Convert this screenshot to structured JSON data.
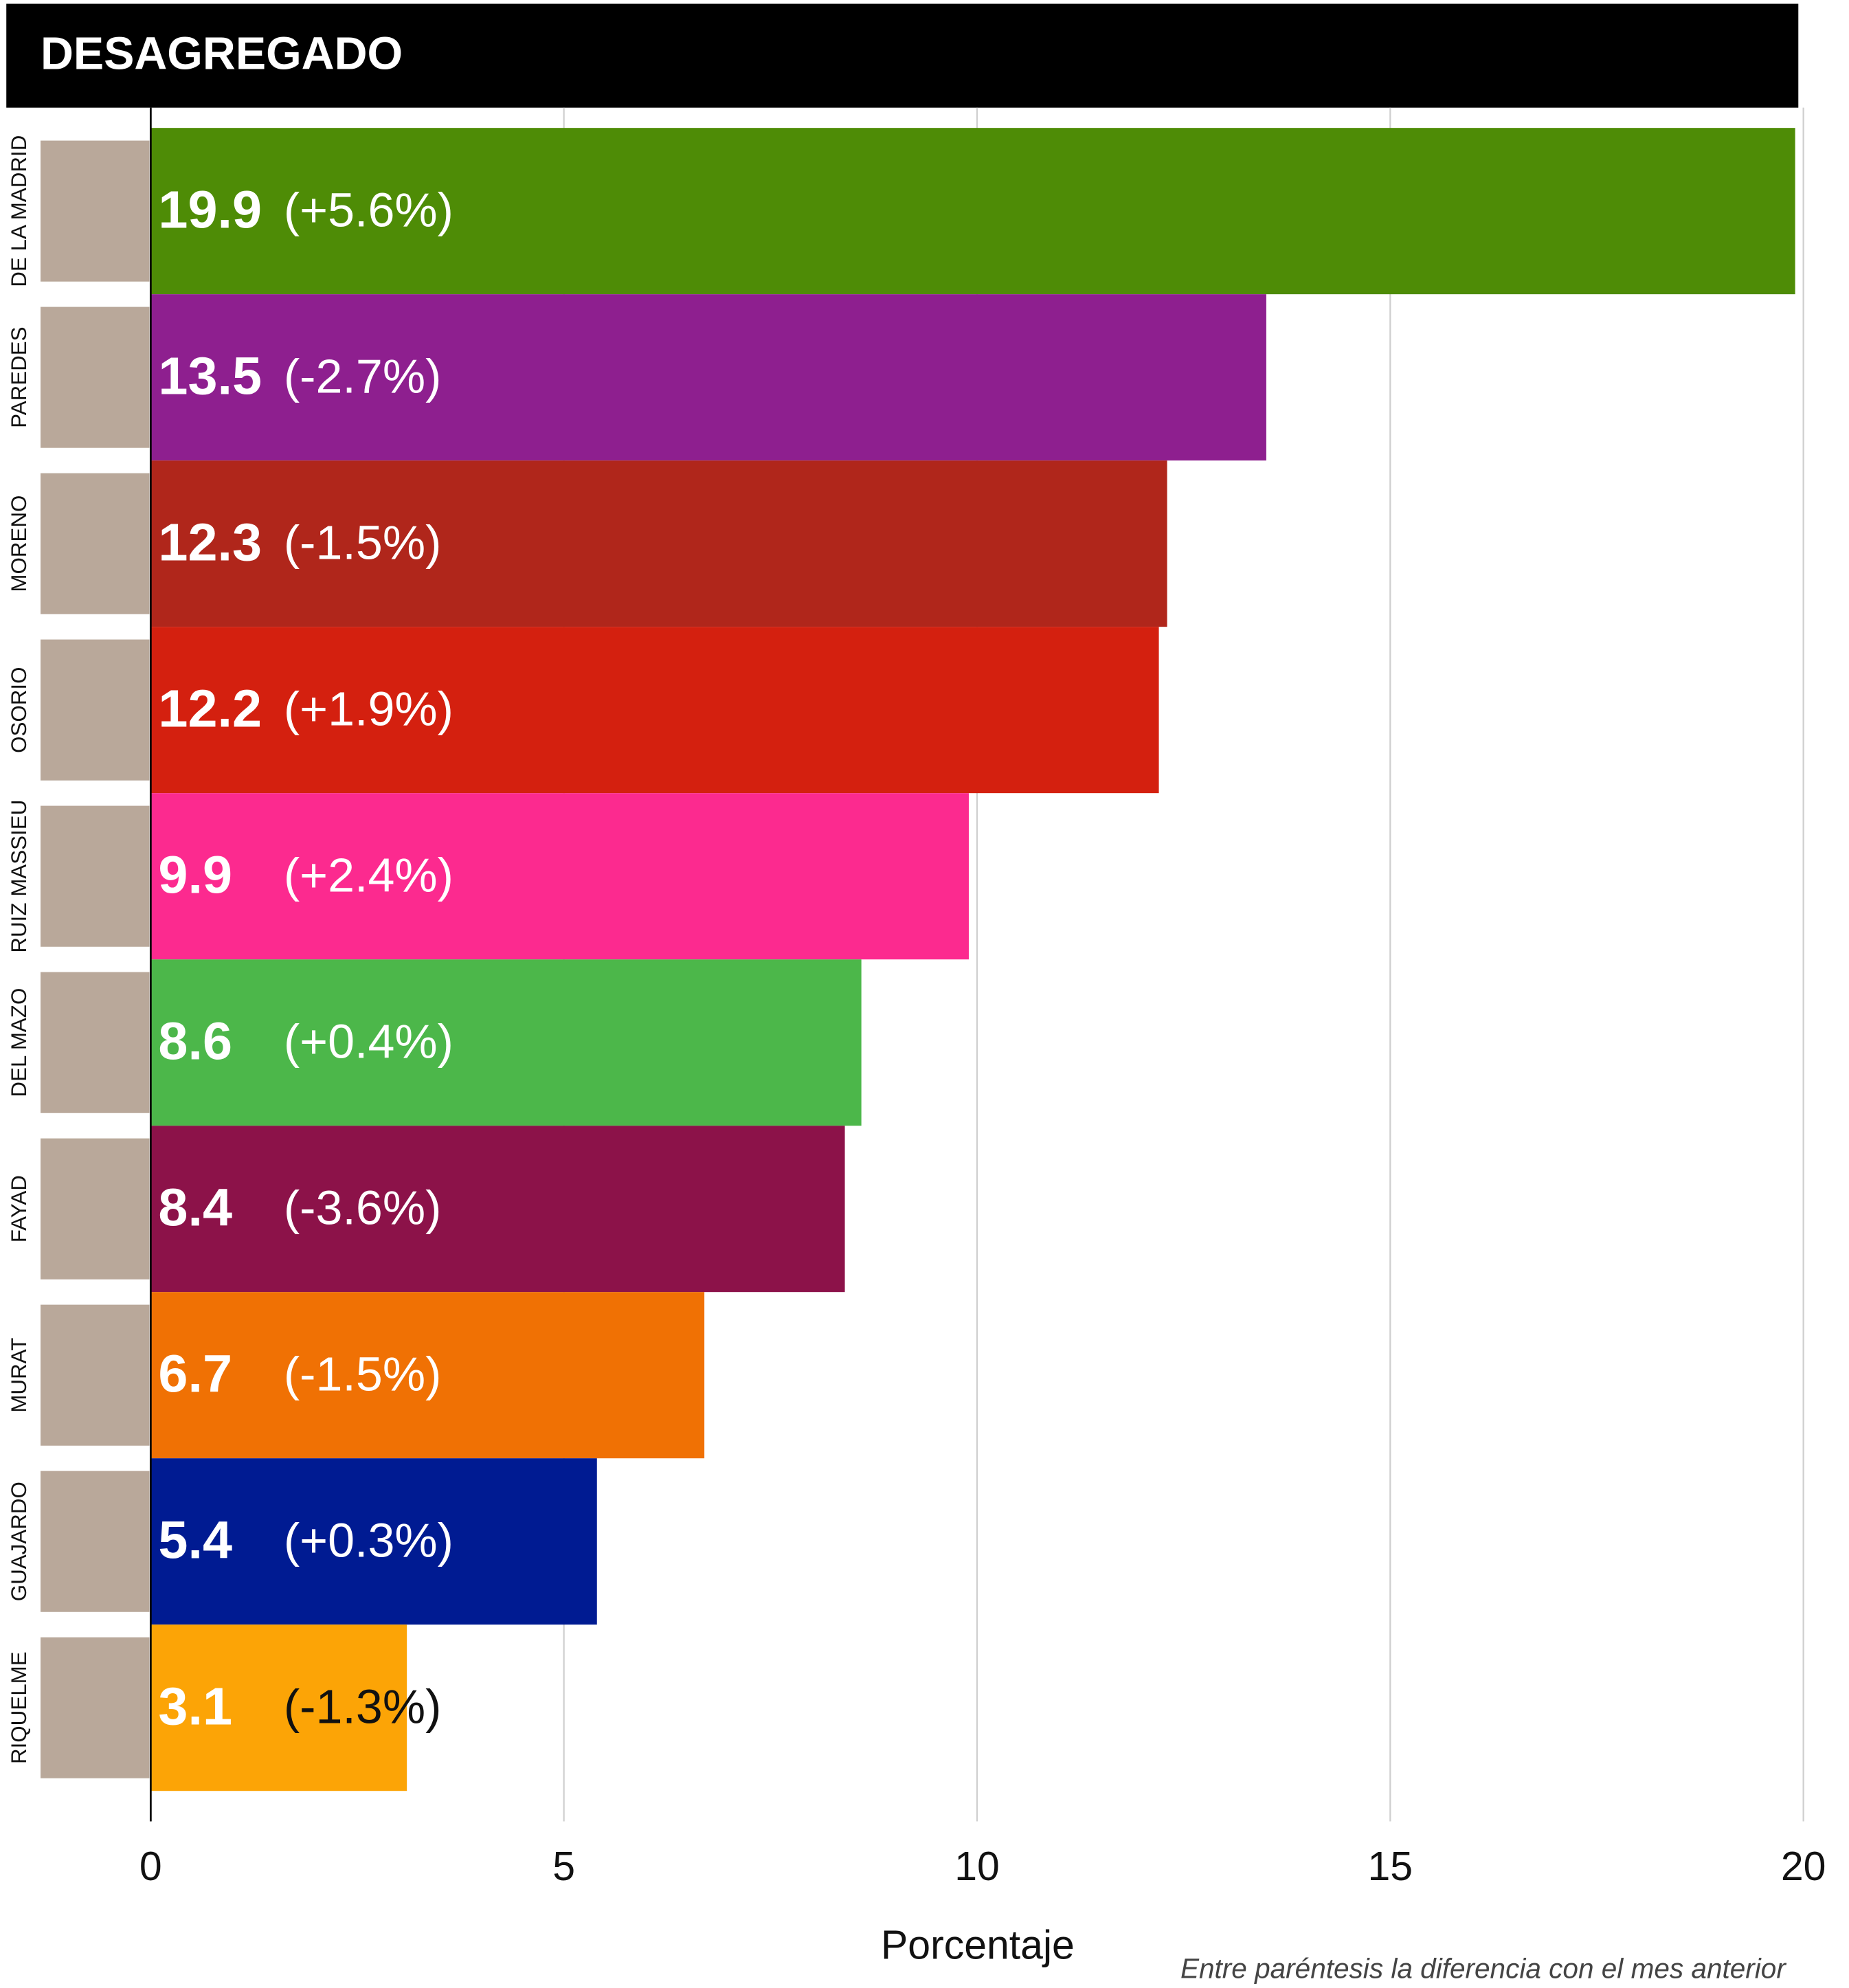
{
  "chart_data": {
    "type": "bar",
    "orientation": "horizontal",
    "title": "DESAGREGADO",
    "categories": [
      "DE LA MADRID",
      "PAREDES",
      "MORENO",
      "OSORIO",
      "RUIZ MASSIEU",
      "DEL MAZO",
      "FAYAD",
      "MURAT",
      "GUAJARDO",
      "RIQUELME"
    ],
    "values": [
      19.9,
      13.5,
      12.3,
      12.2,
      9.9,
      8.6,
      8.4,
      6.7,
      5.4,
      3.1
    ],
    "change_labels": [
      "(+5.6%)",
      "(-2.7%)",
      "(-1.5%)",
      "(+1.9%)",
      "(+2.4%)",
      "(+0.4%)",
      "(-3.6%)",
      "(-1.5%)",
      "(+0.3%)",
      "(-1.3%)"
    ],
    "colors": [
      "#4e8c06",
      "#8e1f8f",
      "#b0261b",
      "#d4200f",
      "#fc2a8f",
      "#4cb74a",
      "#8c1249",
      "#f07104",
      "#001b92",
      "#fca406"
    ],
    "xlim": [
      0,
      20
    ],
    "xticks": [
      0,
      5,
      10,
      15,
      20
    ],
    "grid": true,
    "xlabel": "Porcentaje",
    "note": "Entre paréntesis la diferencia con el mes anterior"
  }
}
